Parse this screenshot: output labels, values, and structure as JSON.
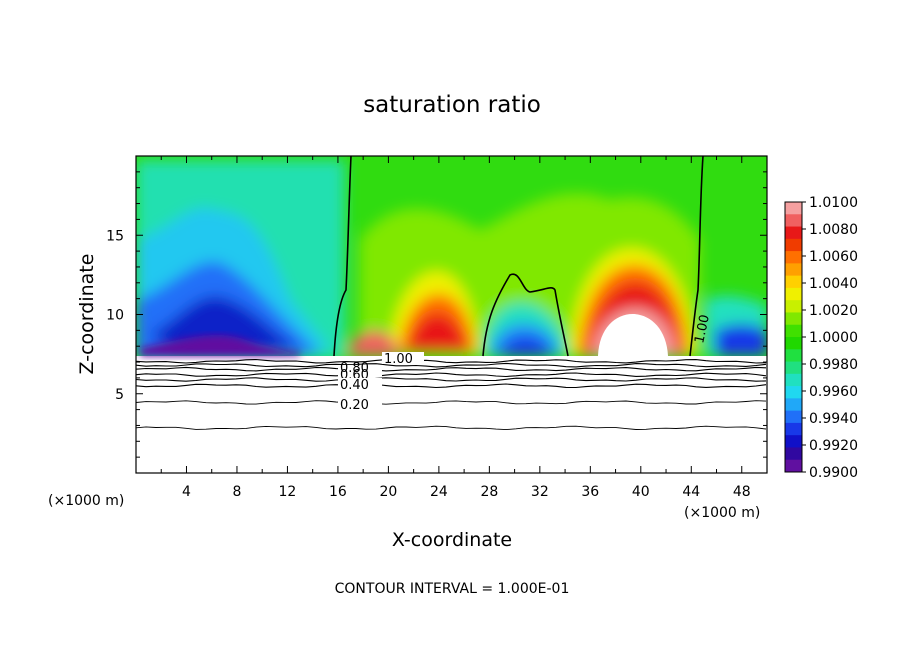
{
  "chart_data": {
    "type": "heatmap",
    "title": "saturation ratio",
    "xlabel": "X-coordinate",
    "ylabel": "Z-coordinate",
    "x_unit_left": "(×1000 m)",
    "x_unit_right": "(×1000 m)",
    "xlim": [
      0,
      50
    ],
    "ylim": [
      0,
      20
    ],
    "x_ticks": [
      4,
      8,
      12,
      16,
      20,
      24,
      28,
      32,
      36,
      40,
      44,
      48
    ],
    "y_ticks": [
      5,
      10,
      15
    ],
    "footer": "CONTOUR INTERVAL = 1.000E-01",
    "colorbar": {
      "min": 0.99,
      "max": 1.01,
      "labels": [
        "1.0100",
        "1.0080",
        "1.0060",
        "1.0040",
        "1.0020",
        "1.0000",
        "0.9980",
        "0.9960",
        "0.9940",
        "0.9920",
        "0.9900"
      ],
      "colors": [
        "#f5a0a0",
        "#f06060",
        "#e81818",
        "#f03c00",
        "#ff7000",
        "#ffa000",
        "#ffd000",
        "#f0f000",
        "#c8f000",
        "#80e800",
        "#40e000",
        "#20d800",
        "#20e040",
        "#20e080",
        "#20e0c0",
        "#20d8f0",
        "#20a8f8",
        "#2070f8",
        "#1838e8",
        "#1010c8",
        "#3008a0",
        "#6010a0"
      ]
    },
    "contour_labels": [
      "1.00",
      "0.80",
      "0.60",
      "0.40",
      "0.20",
      "1.00"
    ],
    "contours": {
      "below_cloud_z": [
        7.05,
        6.8,
        6.55,
        6.2,
        5.9,
        5.5,
        4.45,
        2.85
      ],
      "sat_boundary_1_x": [
        16.0,
        16.5,
        16.8
      ],
      "sat_boundary_2_x": [
        44.0,
        44.3,
        44.5
      ]
    },
    "regions": [
      {
        "x": [
          0,
          16
        ],
        "z_top": 20,
        "value": 0.9935
      },
      {
        "x": [
          16,
          21
        ],
        "z_top": 20,
        "value": 1.0005
      },
      {
        "x": [
          21,
          27
        ],
        "peak_z": 11.5,
        "value": 1.006
      },
      {
        "x": [
          27.5,
          34.5
        ],
        "peak_z": 12.5,
        "value": 0.996
      },
      {
        "x": [
          35,
          42
        ],
        "peak_z": 13,
        "value": 1.008
      },
      {
        "x": [
          44,
          50
        ],
        "z_top": 20,
        "value": 0.999
      }
    ]
  }
}
